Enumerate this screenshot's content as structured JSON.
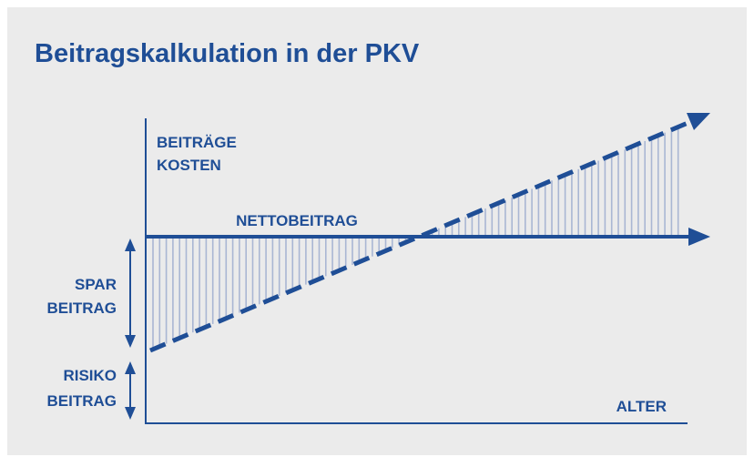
{
  "title": "Beitragskalkulation in der PKV",
  "labels": {
    "y_axis": [
      "BEITRÄGE",
      "KOSTEN"
    ],
    "netto": "NETTOBEITRAG",
    "spar": [
      "SPAR",
      "BEITRAG"
    ],
    "risiko": [
      "RISIKO",
      "BEITRAG"
    ],
    "x_axis": "ALTER"
  }
}
